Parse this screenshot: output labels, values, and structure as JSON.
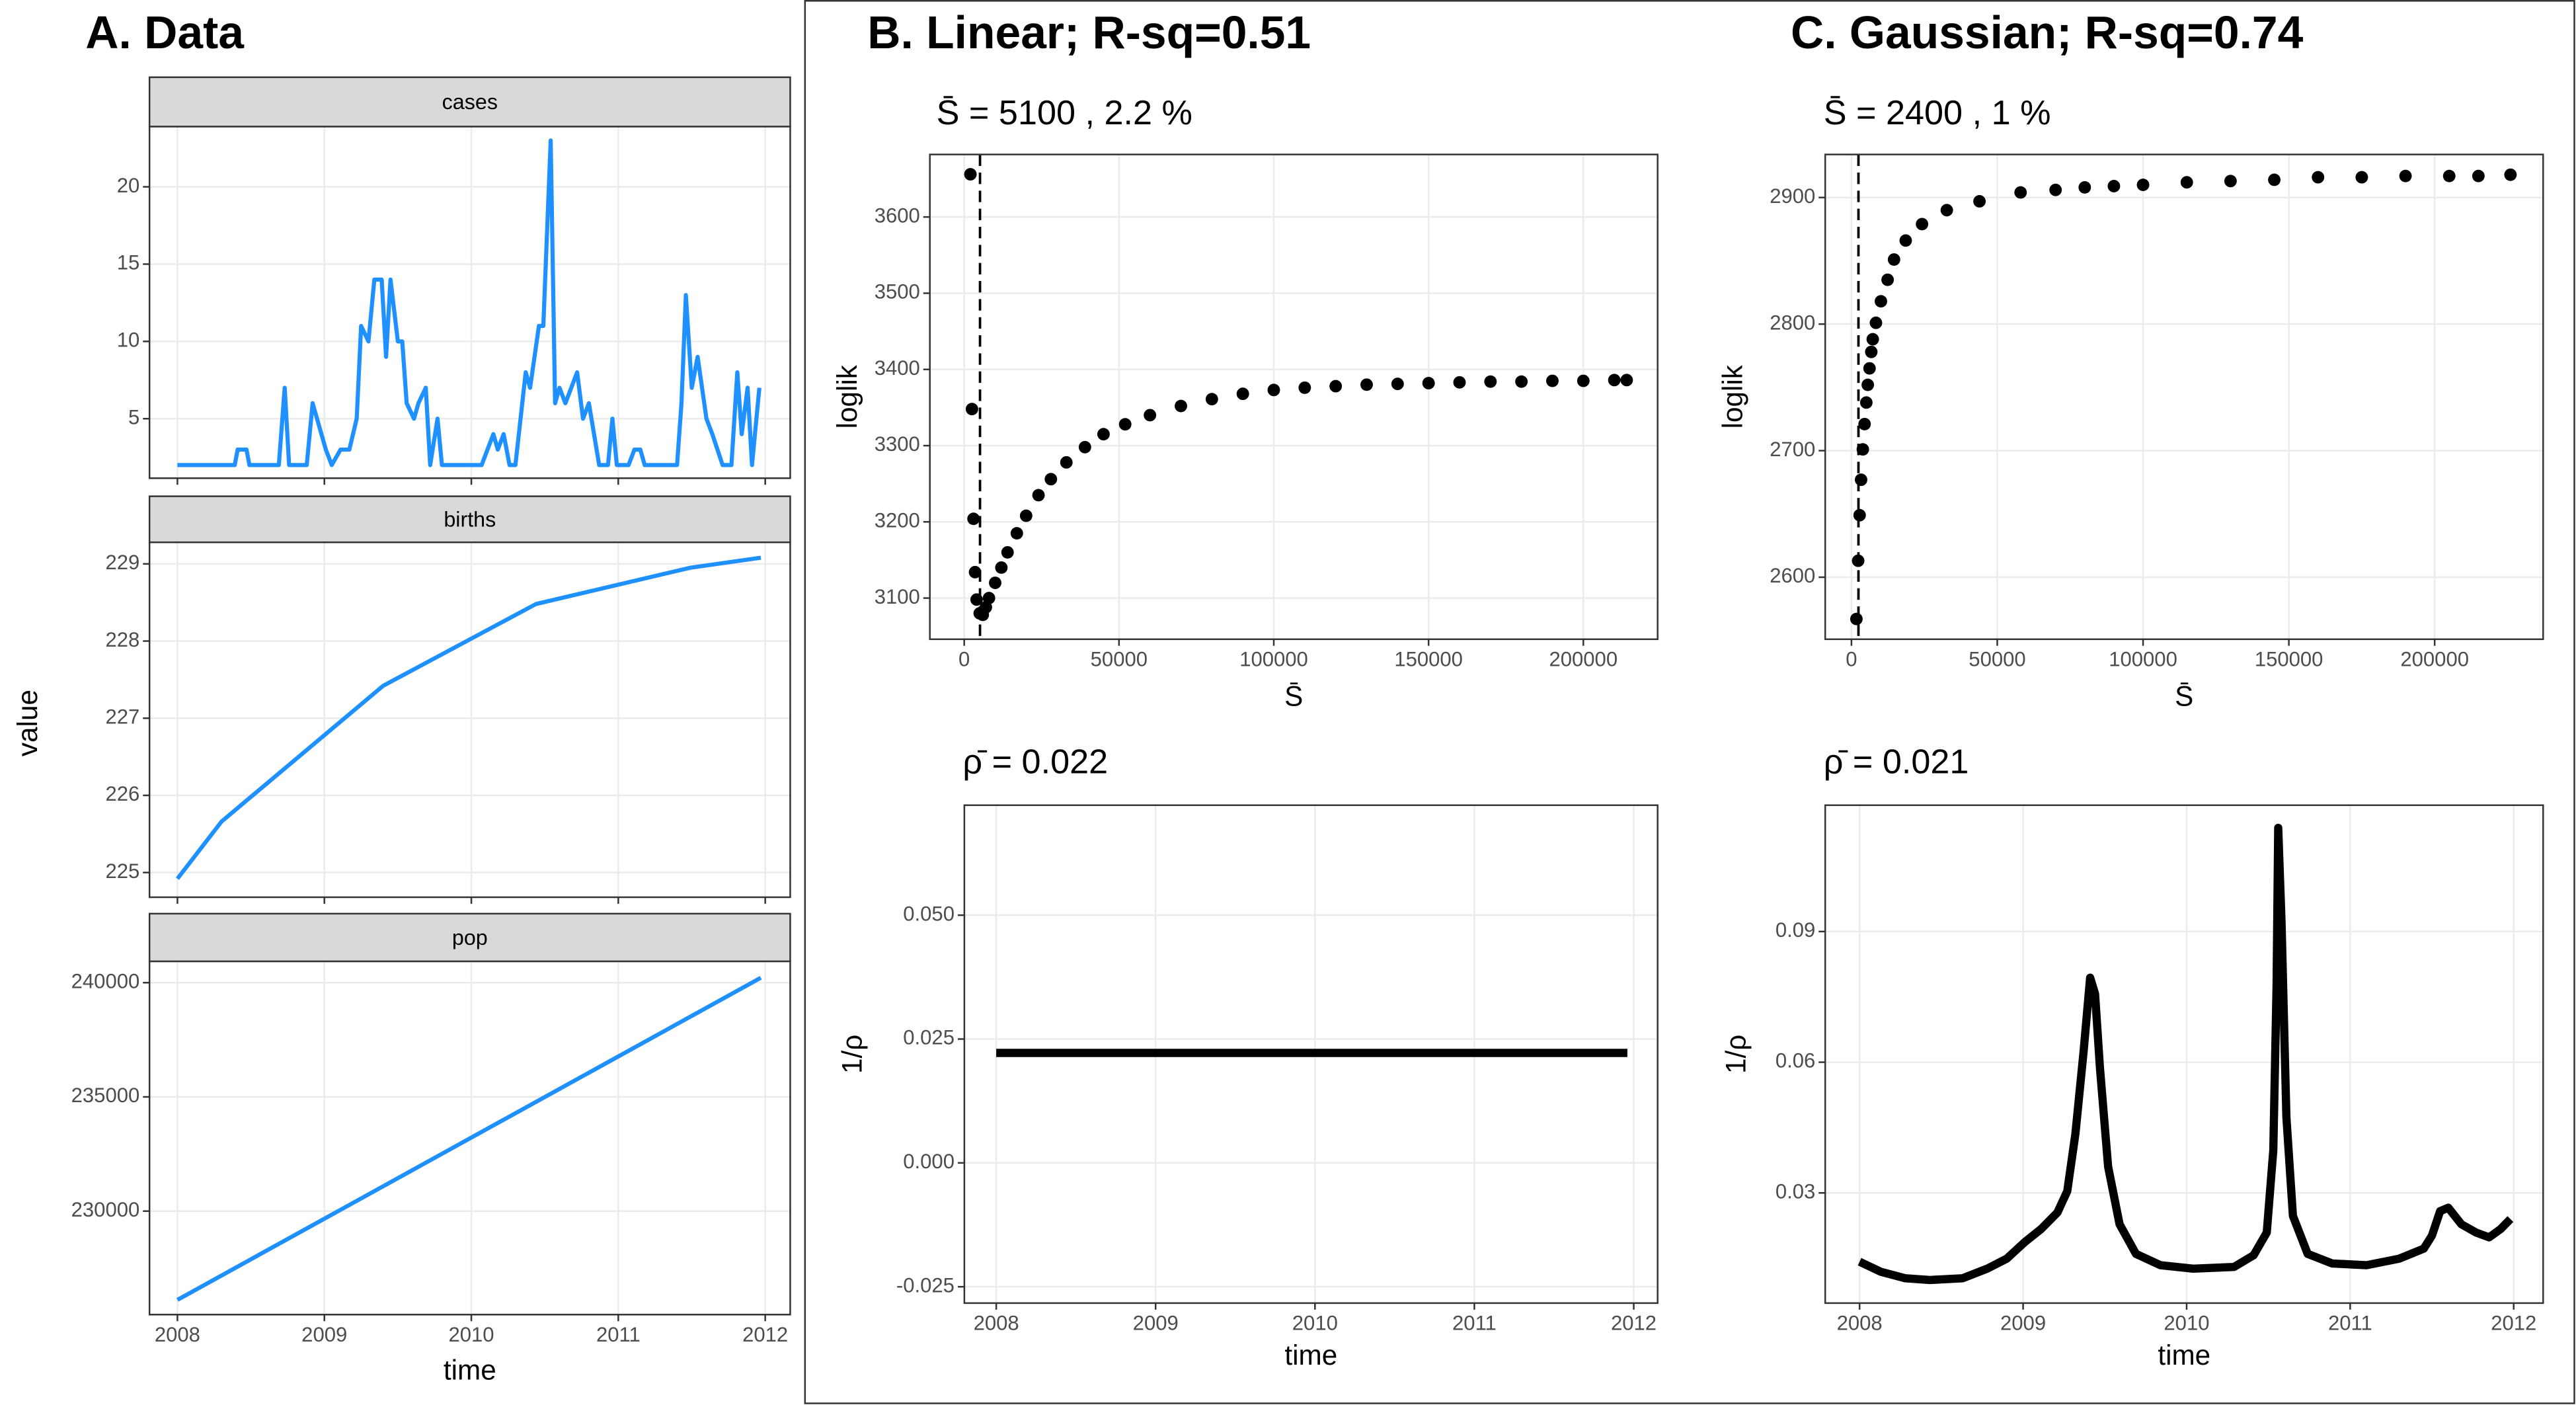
{
  "panel_titles": [
    "A. Data",
    "B. Linear; R-sq=0.51",
    "C. Gaussian; R-sq=0.74"
  ],
  "chart_data": [
    {
      "type": "line",
      "title": "cases",
      "color": "#1e90ff",
      "grid": true,
      "x": [
        2008.0,
        2008.39,
        2008.41,
        2008.47,
        2008.49,
        2008.69,
        2008.73,
        2008.76,
        2008.88,
        2008.92,
        2008.95,
        2009.01,
        2009.05,
        2009.11,
        2009.17,
        2009.22,
        2009.25,
        2009.3,
        2009.34,
        2009.39,
        2009.42,
        2009.45,
        2009.5,
        2009.53,
        2009.56,
        2009.61,
        2009.64,
        2009.69,
        2009.72,
        2009.77,
        2009.8,
        2010.07,
        2010.11,
        2010.15,
        2010.18,
        2010.22,
        2010.26,
        2010.3,
        2010.37,
        2010.4,
        2010.46,
        2010.49,
        2010.54,
        2010.57,
        2010.6,
        2010.64,
        2010.68,
        2010.72,
        2010.76,
        2010.8,
        2010.87,
        2010.93,
        2010.96,
        2010.99,
        2011.07,
        2011.11,
        2011.15,
        2011.18,
        2011.4,
        2011.43,
        2011.46,
        2011.5,
        2011.54,
        2011.6,
        2011.64,
        2011.71,
        2011.77,
        2011.81,
        2011.84,
        2011.88,
        2011.91,
        2011.96
      ],
      "values": [
        2,
        2,
        3,
        3,
        2,
        2,
        7,
        2,
        2,
        6,
        5,
        3,
        2,
        3,
        3,
        5,
        11,
        10,
        14,
        14,
        9,
        14,
        10,
        10,
        6,
        5,
        6,
        7,
        2,
        5,
        2,
        2,
        3,
        4,
        3,
        4,
        2,
        2,
        8,
        7,
        11,
        11,
        23,
        6,
        7,
        6,
        7,
        8,
        5,
        6,
        2,
        2,
        5,
        2,
        2,
        3,
        3,
        2,
        2,
        6,
        13,
        7,
        9,
        5,
        4,
        2,
        2,
        8,
        4,
        7,
        2,
        7
      ],
      "xlim": [
        2007.81,
        2012.17
      ],
      "ylim": [
        1.15,
        23.9
      ],
      "xticks": [
        2008,
        2009,
        2010,
        2011,
        2012
      ],
      "yticks": [
        5,
        10,
        15,
        20
      ]
    },
    {
      "type": "line",
      "title": "births",
      "ylabel": "value",
      "color": "#1e90ff",
      "grid": true,
      "x": [
        2008.0,
        2008.3,
        2009.4,
        2010.44,
        2011.49,
        2011.97
      ],
      "values": [
        224.92,
        225.66,
        227.42,
        228.48,
        228.95,
        229.08
      ],
      "xlim": [
        2007.81,
        2012.17
      ],
      "ylim": [
        224.68,
        229.28
      ],
      "xticks": [
        2008,
        2009,
        2010,
        2011,
        2012
      ],
      "yticks": [
        225,
        226,
        227,
        228,
        229
      ]
    },
    {
      "type": "line",
      "title": "pop",
      "xlabel": "time",
      "color": "#1e90ff",
      "grid": true,
      "x": [
        2008.0,
        2011.97
      ],
      "values": [
        226115,
        240215
      ],
      "xlim": [
        2007.81,
        2012.17
      ],
      "ylim": [
        225470,
        240935
      ],
      "xticks": [
        2008,
        2009,
        2010,
        2011,
        2012
      ],
      "yticks": [
        230000,
        235000,
        240000
      ]
    },
    {
      "type": "scatter",
      "title": "S̄ = 5100 , 2.2 %",
      "xlabel": "S̄",
      "ylabel": "loglik",
      "color": "#000000",
      "grid": true,
      "vline": 5100,
      "x": [
        2000,
        2500,
        3000,
        3500,
        4000,
        5000,
        6000,
        7000,
        8000,
        10000,
        12000,
        14000,
        17000,
        20000,
        24000,
        28000,
        33000,
        39000,
        45000,
        52000,
        60000,
        70000,
        80000,
        90000,
        100000,
        110000,
        120000,
        130000,
        140000,
        150000,
        160000,
        170000,
        180000,
        190000,
        200000,
        210000,
        214000
      ],
      "values": [
        3656,
        3348,
        3204,
        3134,
        3098,
        3080,
        3078,
        3088,
        3100,
        3120,
        3140,
        3160,
        3185,
        3208,
        3235,
        3256,
        3278,
        3298,
        3315,
        3328,
        3340,
        3352,
        3361,
        3368,
        3373,
        3376,
        3378,
        3380,
        3381,
        3382,
        3383,
        3384,
        3384,
        3385,
        3385,
        3386,
        3386
      ],
      "xlim": [
        -11100,
        224000
      ],
      "ylim": [
        3046,
        3682
      ],
      "xticks": [
        0,
        50000,
        100000,
        150000,
        200000
      ],
      "yticks": [
        3100,
        3200,
        3300,
        3400,
        3500,
        3600
      ]
    },
    {
      "type": "line",
      "title": "ρ̄ = 0.022",
      "xlabel": "time",
      "ylabel": "1/ρ",
      "color": "#000000",
      "grid": true,
      "x": [
        2008.0,
        2011.96
      ],
      "values": [
        0.0222,
        0.0222
      ],
      "xlim": [
        2007.8,
        2012.15
      ],
      "ylim": [
        -0.0283,
        0.0722
      ],
      "xticks": [
        2008,
        2009,
        2010,
        2011,
        2012
      ],
      "yticks": [
        {
          "value": -0.025,
          "label": "-0.025"
        },
        {
          "value": 0,
          "label": "0.000"
        },
        0.025,
        {
          "value": 0.05,
          "label": "0.050"
        }
      ]
    },
    {
      "type": "scatter",
      "title": "S̄ = 2400 , 1 %",
      "xlabel": "S̄",
      "ylabel": "loglik",
      "color": "#000000",
      "grid": true,
      "vline": 2400,
      "x": [
        1700,
        2300,
        2800,
        3300,
        3900,
        4500,
        5100,
        5600,
        6200,
        6800,
        7300,
        8400,
        10100,
        12400,
        14600,
        18600,
        24200,
        32700,
        43900,
        58000,
        70000,
        80000,
        90000,
        100000,
        115000,
        130000,
        145000,
        160000,
        175000,
        190000,
        205000,
        215000,
        226000
      ],
      "values": [
        2567,
        2613,
        2649,
        2677,
        2701,
        2721,
        2738,
        2752,
        2765,
        2778,
        2788,
        2801,
        2818,
        2835,
        2851,
        2866,
        2879,
        2890,
        2897,
        2904,
        2906,
        2908,
        2909,
        2910,
        2912,
        2913,
        2914,
        2916,
        2916,
        2917,
        2917,
        2917,
        2918
      ],
      "xlim": [
        -9000,
        237200
      ],
      "ylim": [
        2551,
        2934
      ],
      "xticks": [
        0,
        50000,
        100000,
        150000,
        200000
      ],
      "yticks": [
        2600,
        2700,
        2800,
        2900
      ]
    },
    {
      "type": "line",
      "title": "ρ̄ = 0.021",
      "xlabel": "time",
      "ylabel": "1/ρ",
      "color": "#000000",
      "grid": true,
      "x": [
        2008.0,
        2008.13,
        2008.28,
        2008.43,
        2008.63,
        2008.78,
        2008.9,
        2009.01,
        2009.11,
        2009.21,
        2009.27,
        2009.32,
        2009.37,
        2009.41,
        2009.44,
        2009.47,
        2009.52,
        2009.59,
        2009.69,
        2009.84,
        2010.04,
        2010.29,
        2010.41,
        2010.49,
        2010.53,
        2010.55,
        2010.56,
        2010.58,
        2010.61,
        2010.65,
        2010.74,
        2010.89,
        2011.1,
        2011.3,
        2011.45,
        2011.5,
        2011.55,
        2011.6,
        2011.68,
        2011.77,
        2011.85,
        2011.92,
        2011.98
      ],
      "values": [
        0.0142,
        0.0119,
        0.0104,
        0.01,
        0.0104,
        0.0126,
        0.0149,
        0.0187,
        0.0217,
        0.0255,
        0.0304,
        0.0436,
        0.0625,
        0.0794,
        0.0757,
        0.0587,
        0.036,
        0.0228,
        0.016,
        0.0134,
        0.0126,
        0.013,
        0.0157,
        0.0209,
        0.0398,
        0.0775,
        0.1138,
        0.0926,
        0.0474,
        0.0247,
        0.016,
        0.0138,
        0.0134,
        0.0149,
        0.0172,
        0.0202,
        0.0258,
        0.0266,
        0.0228,
        0.0209,
        0.0198,
        0.0217,
        0.024
      ],
      "xlim": [
        2007.79,
        2012.18
      ],
      "ylim": [
        0.0047,
        0.119
      ],
      "xticks": [
        2008,
        2009,
        2010,
        2011,
        2012
      ],
      "yticks": [
        0.03,
        0.06,
        0.09
      ]
    }
  ]
}
